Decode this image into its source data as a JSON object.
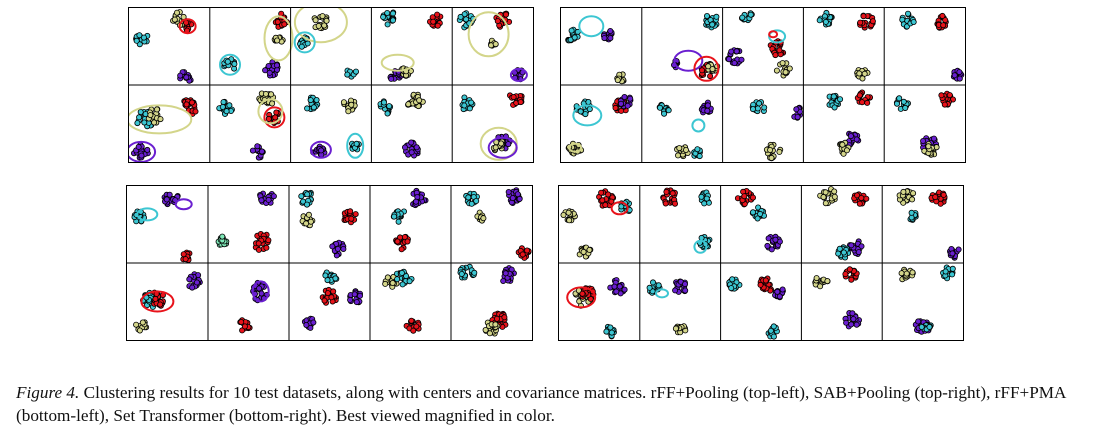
{
  "caption": {
    "label": "Figure 4.",
    "text": "Clustering results for 10 test datasets, along with centers and covariance matrices. rFF+Pooling (top-left), SAB+Pooling (top-right), rFF+PMA (bottom-left), Set Transformer (bottom-right). Best viewed magnified in color."
  },
  "panels": [
    {
      "name": "rFF+Pooling",
      "position": "top-left",
      "grid": "2x5"
    },
    {
      "name": "SAB+Pooling",
      "position": "top-right",
      "grid": "2x5"
    },
    {
      "name": "rFF+PMA",
      "position": "bottom-left",
      "grid": "2x5"
    },
    {
      "name": "Set Transformer",
      "position": "bottom-right",
      "grid": "2x5"
    }
  ],
  "colors": {
    "cyan": "#3cc6d2",
    "red": "#e8131b",
    "purple": "#6a1fd0",
    "khaki": "#d3d58a",
    "mint": "#7ee8b8",
    "outline": "#000000"
  }
}
